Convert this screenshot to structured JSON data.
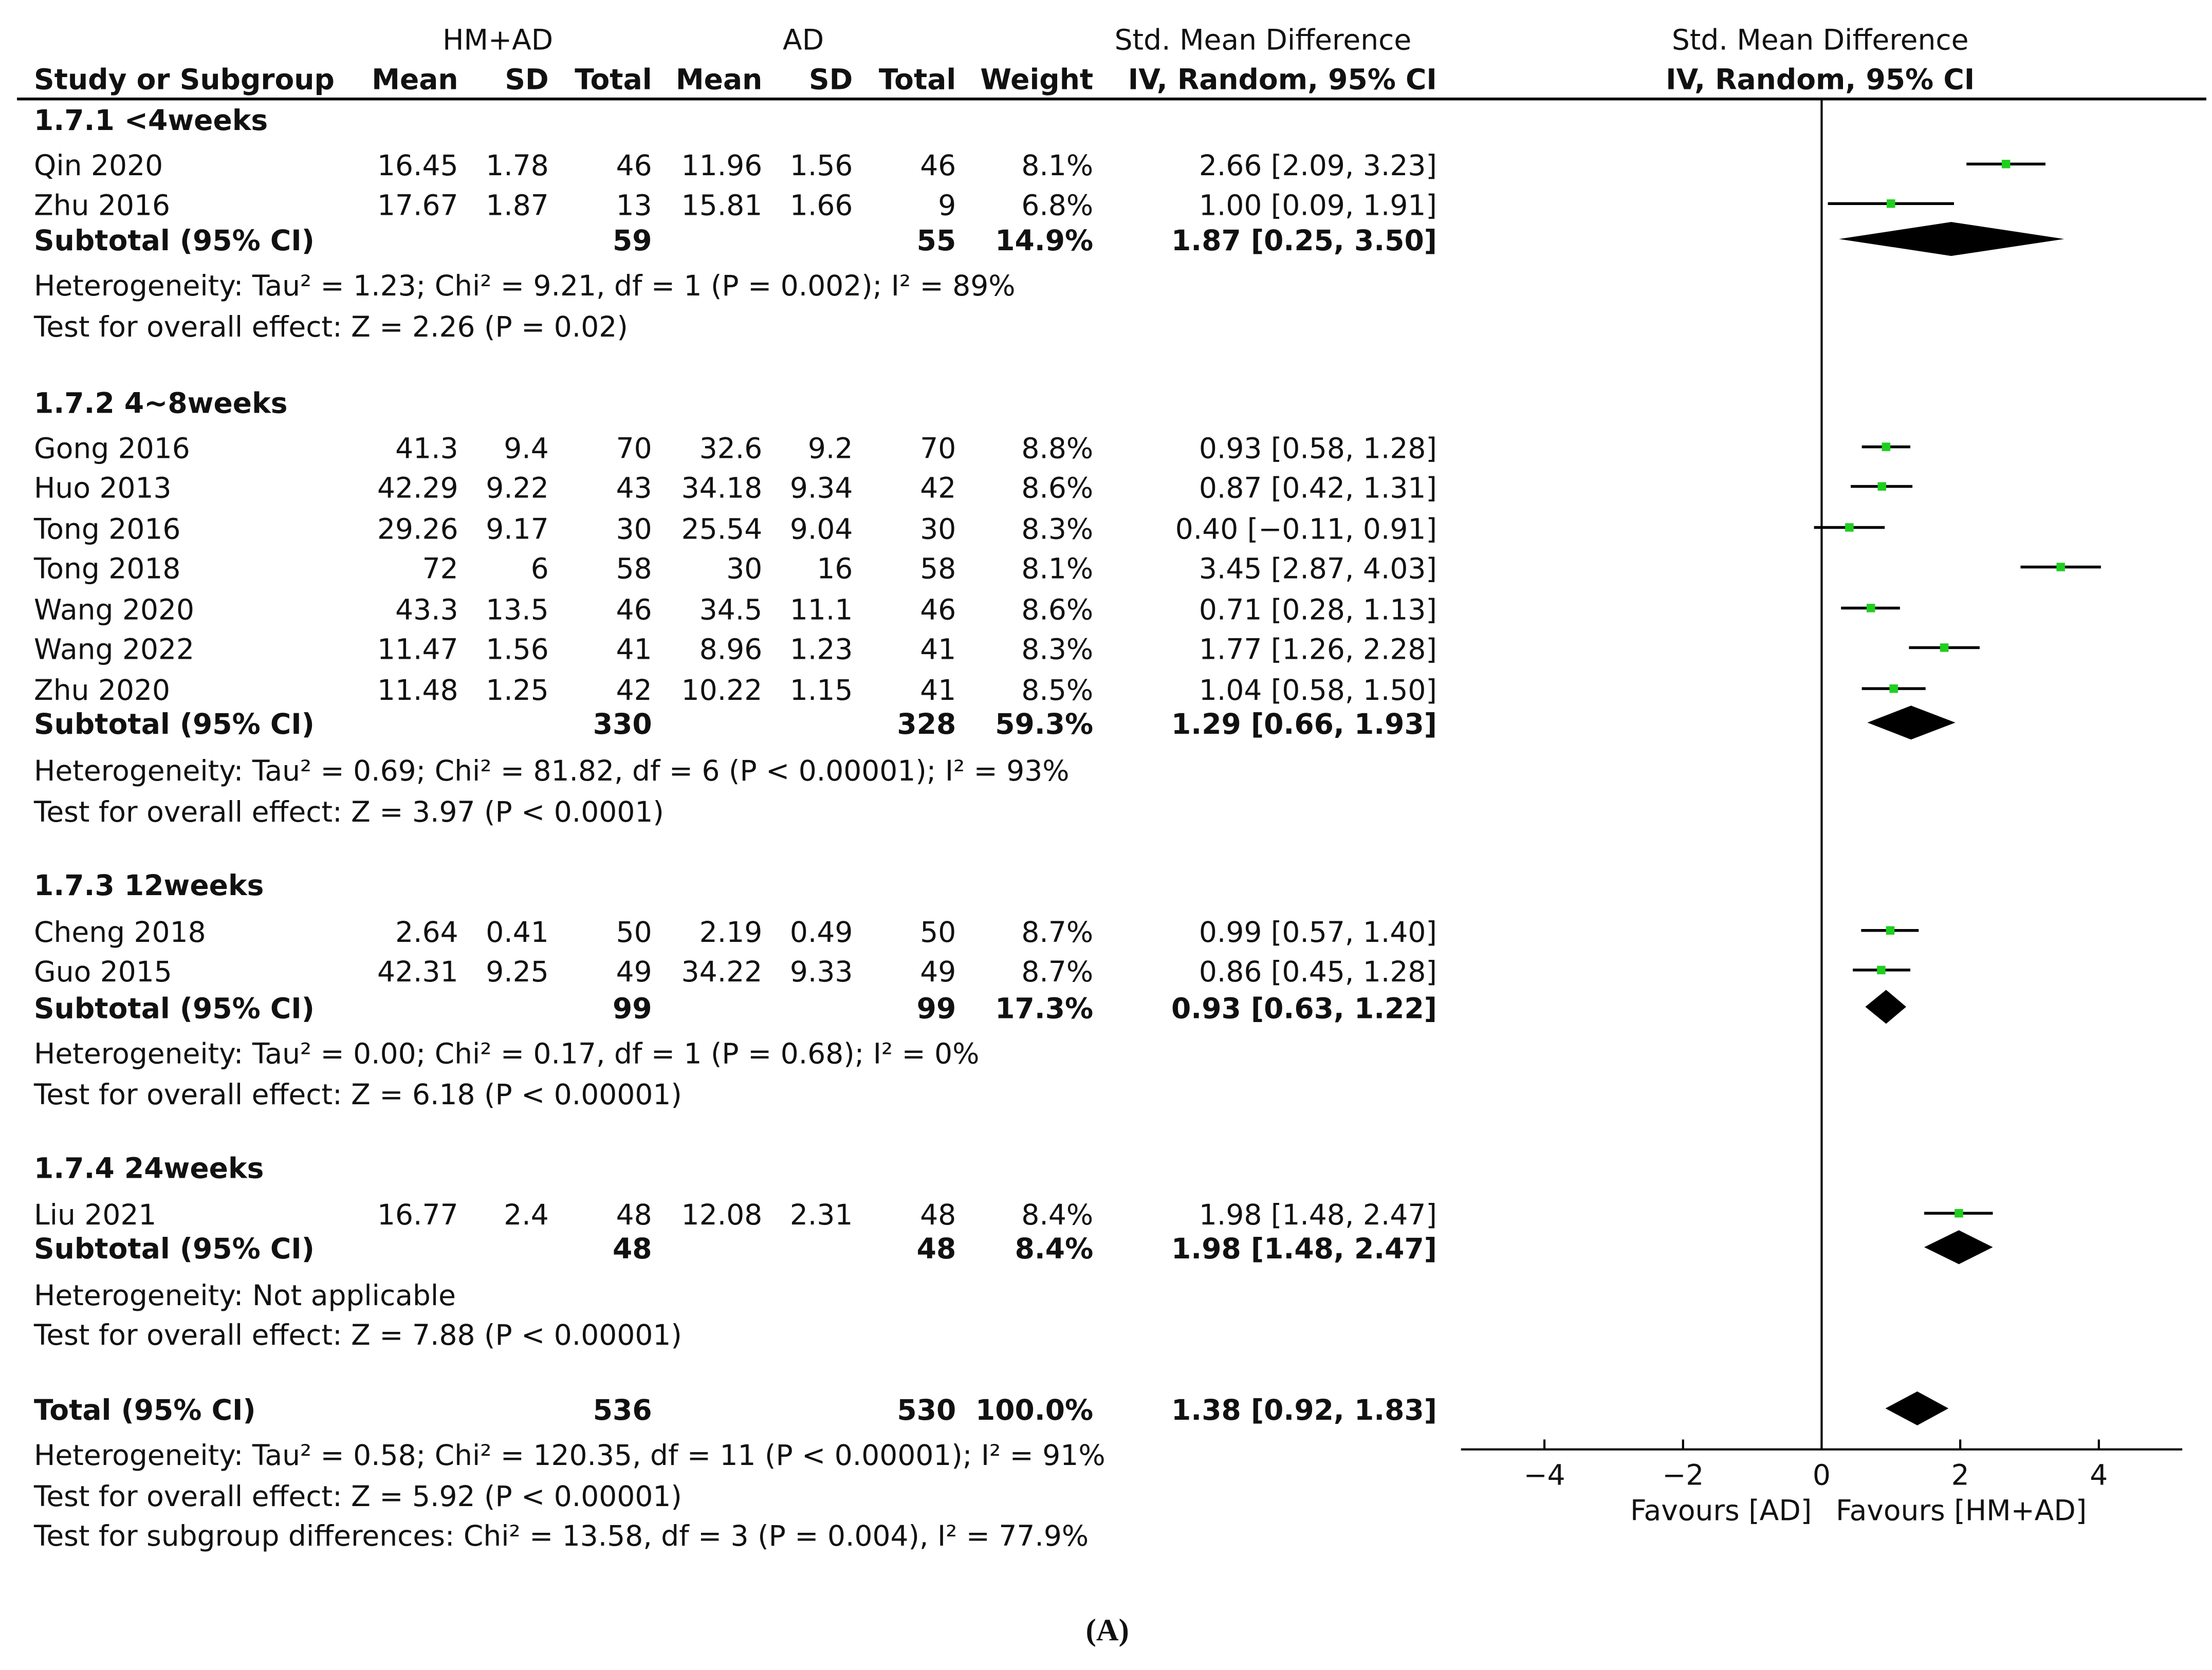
{
  "header": {
    "group1": "HM+AD",
    "group2": "AD",
    "smd_title": "Std. Mean Difference",
    "smd_method": "IV, Random, 95% CI",
    "columns": {
      "study": "Study or Subgroup",
      "mean1": "Mean",
      "sd1": "SD",
      "total1": "Total",
      "mean2": "Mean",
      "sd2": "SD",
      "total2": "Total",
      "weight": "Weight",
      "ci": "IV, Random, 95% CI"
    }
  },
  "subgroups": [
    {
      "title": "1.7.1 <4weeks",
      "studies": [
        {
          "name": "Qin 2020",
          "mean1": "16.45",
          "sd1": "1.78",
          "n1": "46",
          "mean2": "11.96",
          "sd2": "1.56",
          "n2": "46",
          "weight": "8.1%",
          "ci_text": "2.66 [2.09, 3.23]"
        },
        {
          "name": "Zhu 2016",
          "mean1": "17.67",
          "sd1": "1.87",
          "n1": "13",
          "mean2": "15.81",
          "sd2": "1.66",
          "n2": "9",
          "weight": "6.8%",
          "ci_text": "1.00 [0.09, 1.91]"
        }
      ],
      "subtotal": {
        "label": "Subtotal (95% CI)",
        "n1": "59",
        "n2": "55",
        "weight": "14.9%",
        "ci_text": "1.87 [0.25, 3.50]"
      },
      "heterogeneity": "Heterogeneity: Tau² = 1.23; Chi² = 9.21, df = 1 (P = 0.002); I² = 89%",
      "overall": "Test for overall effect: Z = 2.26 (P = 0.02)"
    },
    {
      "title": "1.7.2 4~8weeks",
      "studies": [
        {
          "name": "Gong 2016",
          "mean1": "41.3",
          "sd1": "9.4",
          "n1": "70",
          "mean2": "32.6",
          "sd2": "9.2",
          "n2": "70",
          "weight": "8.8%",
          "ci_text": "0.93 [0.58, 1.28]"
        },
        {
          "name": "Huo 2013",
          "mean1": "42.29",
          "sd1": "9.22",
          "n1": "43",
          "mean2": "34.18",
          "sd2": "9.34",
          "n2": "42",
          "weight": "8.6%",
          "ci_text": "0.87 [0.42, 1.31]"
        },
        {
          "name": "Tong 2016",
          "mean1": "29.26",
          "sd1": "9.17",
          "n1": "30",
          "mean2": "25.54",
          "sd2": "9.04",
          "n2": "30",
          "weight": "8.3%",
          "ci_text": "0.40 [−0.11, 0.91]"
        },
        {
          "name": "Tong 2018",
          "mean1": "72",
          "sd1": "6",
          "n1": "58",
          "mean2": "30",
          "sd2": "16",
          "n2": "58",
          "weight": "8.1%",
          "ci_text": "3.45 [2.87, 4.03]"
        },
        {
          "name": "Wang 2020",
          "mean1": "43.3",
          "sd1": "13.5",
          "n1": "46",
          "mean2": "34.5",
          "sd2": "11.1",
          "n2": "46",
          "weight": "8.6%",
          "ci_text": "0.71 [0.28, 1.13]"
        },
        {
          "name": "Wang 2022",
          "mean1": "11.47",
          "sd1": "1.56",
          "n1": "41",
          "mean2": "8.96",
          "sd2": "1.23",
          "n2": "41",
          "weight": "8.3%",
          "ci_text": "1.77 [1.26, 2.28]"
        },
        {
          "name": "Zhu 2020",
          "mean1": "11.48",
          "sd1": "1.25",
          "n1": "42",
          "mean2": "10.22",
          "sd2": "1.15",
          "n2": "41",
          "weight": "8.5%",
          "ci_text": "1.04 [0.58, 1.50]"
        }
      ],
      "subtotal": {
        "label": "Subtotal (95% CI)",
        "n1": "330",
        "n2": "328",
        "weight": "59.3%",
        "ci_text": "1.29 [0.66, 1.93]"
      },
      "heterogeneity": "Heterogeneity: Tau² = 0.69; Chi² = 81.82, df = 6 (P < 0.00001); I² = 93%",
      "overall": "Test for overall effect: Z = 3.97 (P < 0.0001)"
    },
    {
      "title": "1.7.3 12weeks",
      "studies": [
        {
          "name": "Cheng 2018",
          "mean1": "2.64",
          "sd1": "0.41",
          "n1": "50",
          "mean2": "2.19",
          "sd2": "0.49",
          "n2": "50",
          "weight": "8.7%",
          "ci_text": "0.99 [0.57, 1.40]"
        },
        {
          "name": "Guo 2015",
          "mean1": "42.31",
          "sd1": "9.25",
          "n1": "49",
          "mean2": "34.22",
          "sd2": "9.33",
          "n2": "49",
          "weight": "8.7%",
          "ci_text": "0.86 [0.45, 1.28]"
        }
      ],
      "subtotal": {
        "label": "Subtotal (95% CI)",
        "n1": "99",
        "n2": "99",
        "weight": "17.3%",
        "ci_text": "0.93 [0.63, 1.22]"
      },
      "heterogeneity": "Heterogeneity: Tau² = 0.00; Chi² = 0.17, df = 1 (P = 0.68); I² = 0%",
      "overall": "Test for overall effect: Z = 6.18 (P < 0.00001)"
    },
    {
      "title": "1.7.4 24weeks",
      "studies": [
        {
          "name": "Liu 2021",
          "mean1": "16.77",
          "sd1": "2.4",
          "n1": "48",
          "mean2": "12.08",
          "sd2": "2.31",
          "n2": "48",
          "weight": "8.4%",
          "ci_text": "1.98 [1.48, 2.47]"
        }
      ],
      "subtotal": {
        "label": "Subtotal (95% CI)",
        "n1": "48",
        "n2": "48",
        "weight": "8.4%",
        "ci_text": "1.98 [1.48, 2.47]"
      },
      "heterogeneity": "Heterogeneity: Not applicable",
      "overall": "Test for overall effect: Z = 7.88 (P < 0.00001)"
    }
  ],
  "total": {
    "label": "Total (95% CI)",
    "n1": "536",
    "n2": "530",
    "weight": "100.0%",
    "ci_text": "1.38 [0.92, 1.83]",
    "heterogeneity": "Heterogeneity: Tau² = 0.58; Chi² = 120.35, df = 11 (P < 0.00001); I² = 91%",
    "overall": "Test for overall effect: Z = 5.92 (P < 0.00001)",
    "subgroup_diff": "Test for subgroup differences: Chi² = 13.58, df = 3 (P = 0.004), I² = 77.9%"
  },
  "axis": {
    "favours_left": "Favours [AD]",
    "favours_right": "Favours [HM+AD]"
  },
  "caption": "(A)",
  "chart_data": {
    "type": "scatter",
    "title": "Std. Mean Difference",
    "subtitle": "IV, Random, 95% CI",
    "xlabel": "",
    "ylabel": "",
    "xlim": [
      -5,
      5
    ],
    "xticks": [
      -4,
      -2,
      0,
      2,
      4
    ],
    "xtick_labels": [
      "−4",
      "−2",
      "0",
      "2",
      "4"
    ],
    "grid": false,
    "legend": "none",
    "point_color": "#1fcf1f",
    "diamond_color": "#000000",
    "studies": [
      {
        "label": "Qin 2020",
        "est": 2.66,
        "lo": 2.09,
        "hi": 3.23
      },
      {
        "label": "Zhu 2016",
        "est": 1.0,
        "lo": 0.09,
        "hi": 1.91
      },
      {
        "label": "Gong 2016",
        "est": 0.93,
        "lo": 0.58,
        "hi": 1.28
      },
      {
        "label": "Huo 2013",
        "est": 0.87,
        "lo": 0.42,
        "hi": 1.31
      },
      {
        "label": "Tong 2016",
        "est": 0.4,
        "lo": -0.11,
        "hi": 0.91
      },
      {
        "label": "Tong 2018",
        "est": 3.45,
        "lo": 2.87,
        "hi": 4.03
      },
      {
        "label": "Wang 2020",
        "est": 0.71,
        "lo": 0.28,
        "hi": 1.13
      },
      {
        "label": "Wang 2022",
        "est": 1.77,
        "lo": 1.26,
        "hi": 2.28
      },
      {
        "label": "Zhu 2020",
        "est": 1.04,
        "lo": 0.58,
        "hi": 1.5
      },
      {
        "label": "Cheng 2018",
        "est": 0.99,
        "lo": 0.57,
        "hi": 1.4
      },
      {
        "label": "Guo 2015",
        "est": 0.86,
        "lo": 0.45,
        "hi": 1.28
      },
      {
        "label": "Liu 2021",
        "est": 1.98,
        "lo": 1.48,
        "hi": 2.47
      }
    ],
    "pooled": [
      {
        "label": "Subtotal 1.7.1 <4weeks",
        "est": 1.87,
        "lo": 0.25,
        "hi": 3.5
      },
      {
        "label": "Subtotal 1.7.2 4~8weeks",
        "est": 1.29,
        "lo": 0.66,
        "hi": 1.93
      },
      {
        "label": "Subtotal 1.7.3 12weeks",
        "est": 0.93,
        "lo": 0.63,
        "hi": 1.22
      },
      {
        "label": "Subtotal 1.7.4 24weeks",
        "est": 1.98,
        "lo": 1.48,
        "hi": 2.47
      },
      {
        "label": "Total (95% CI)",
        "est": 1.38,
        "lo": 0.92,
        "hi": 1.83
      }
    ]
  }
}
